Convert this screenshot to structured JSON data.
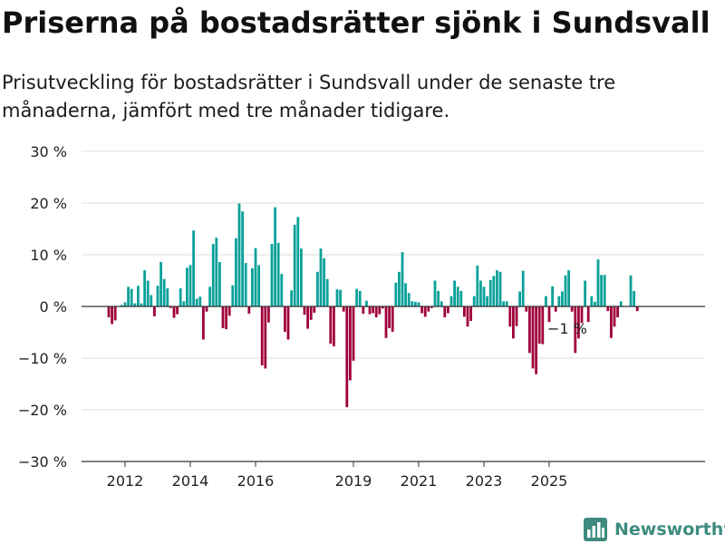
{
  "title": "Priserna på bostadsrätter sjönk i Sundsvall",
  "subtitle": "Prisutveckling för bostadsrätter i Sundsvall under de senaste tre månaderna, jämfört med tre månader tidigare.",
  "brand": {
    "name": "Newsworthy",
    "icon": "newsworthy-logo-icon"
  },
  "colors": {
    "positive": "#0aa19a",
    "negative": "#a0003c",
    "grid": "#dddddd",
    "zero": "#333333",
    "axis": "#333333",
    "brand": "#3d8b7f"
  },
  "chart_data": {
    "type": "bar",
    "title": "Priserna på bostadsrätter sjönk i Sundsvall",
    "xlabel": "",
    "ylabel": "",
    "ylim": [
      -30,
      30
    ],
    "y_ticks": [
      30,
      20,
      10,
      0,
      -10,
      -20,
      -30
    ],
    "y_tick_labels": [
      "30 %",
      "20 %",
      "10 %",
      "0 %",
      "−10 %",
      "−20 %",
      "−30 %"
    ],
    "x_tick_labels": [
      "2012",
      "2014",
      "2016",
      "2019",
      "2021",
      "2023",
      "2025"
    ],
    "x_tick_positions": [
      5,
      25,
      45,
      75,
      95,
      115,
      135
    ],
    "annotation": {
      "text": "−1 %",
      "index": 140
    },
    "values": [
      -2.1,
      -3.4,
      -2.7,
      0.0,
      0.3,
      0.8,
      3.8,
      3.4,
      0.6,
      4.0,
      0.6,
      7.0,
      5.0,
      2.2,
      -1.9,
      4.0,
      8.6,
      5.3,
      3.5,
      -0.3,
      -2.2,
      -1.5,
      3.5,
      1.0,
      7.5,
      8.0,
      14.7,
      1.5,
      1.9,
      -6.4,
      -1.0,
      3.8,
      12.1,
      13.3,
      8.6,
      -4.2,
      -4.4,
      -1.8,
      4.1,
      13.2,
      19.9,
      18.4,
      8.4,
      -1.4,
      7.4,
      11.3,
      8.0,
      -11.4,
      -12.0,
      -3.1,
      12.1,
      19.2,
      12.3,
      6.3,
      -4.9,
      -6.4,
      3.1,
      15.8,
      17.3,
      11.2,
      -1.6,
      -4.3,
      -2.6,
      -1.2,
      6.7,
      11.2,
      9.3,
      5.3,
      -7.2,
      -7.7,
      3.3,
      3.2,
      -1.0,
      -19.5,
      -14.3,
      -10.5,
      3.4,
      3.0,
      -1.4,
      1.1,
      -1.5,
      -1.3,
      -2.1,
      -1.5,
      -0.4,
      -6.1,
      -4.2,
      -4.9,
      4.6,
      6.7,
      10.5,
      4.5,
      2.6,
      1.0,
      0.9,
      0.8,
      -1.3,
      -2.0,
      -1.0,
      -0.3,
      5.0,
      3.0,
      1.0,
      -2.1,
      -1.3,
      2.0,
      5.0,
      3.8,
      3.0,
      -2.0,
      -3.9,
      -2.8,
      2.0,
      7.9,
      5.0,
      3.8,
      2.0,
      5.1,
      5.9,
      7.0,
      6.7,
      1.0,
      1.0,
      -3.9,
      -6.2,
      -3.8,
      2.9,
      6.9,
      -1.0,
      -9.0,
      -12.0,
      -13.1,
      -7.2,
      -7.3,
      2.0,
      -3.0,
      3.9,
      -1.0,
      2.0,
      2.9,
      6.0,
      7.0,
      -1.0,
      -9.0,
      -6.2,
      -3.2,
      5.0,
      -3.0,
      2.0,
      0.9,
      9.1,
      6.1,
      6.1,
      -0.9,
      -6.1,
      -3.9,
      -2.1,
      1.0,
      -0.1,
      0.0,
      6.0,
      3.0,
      -0.9
    ]
  }
}
